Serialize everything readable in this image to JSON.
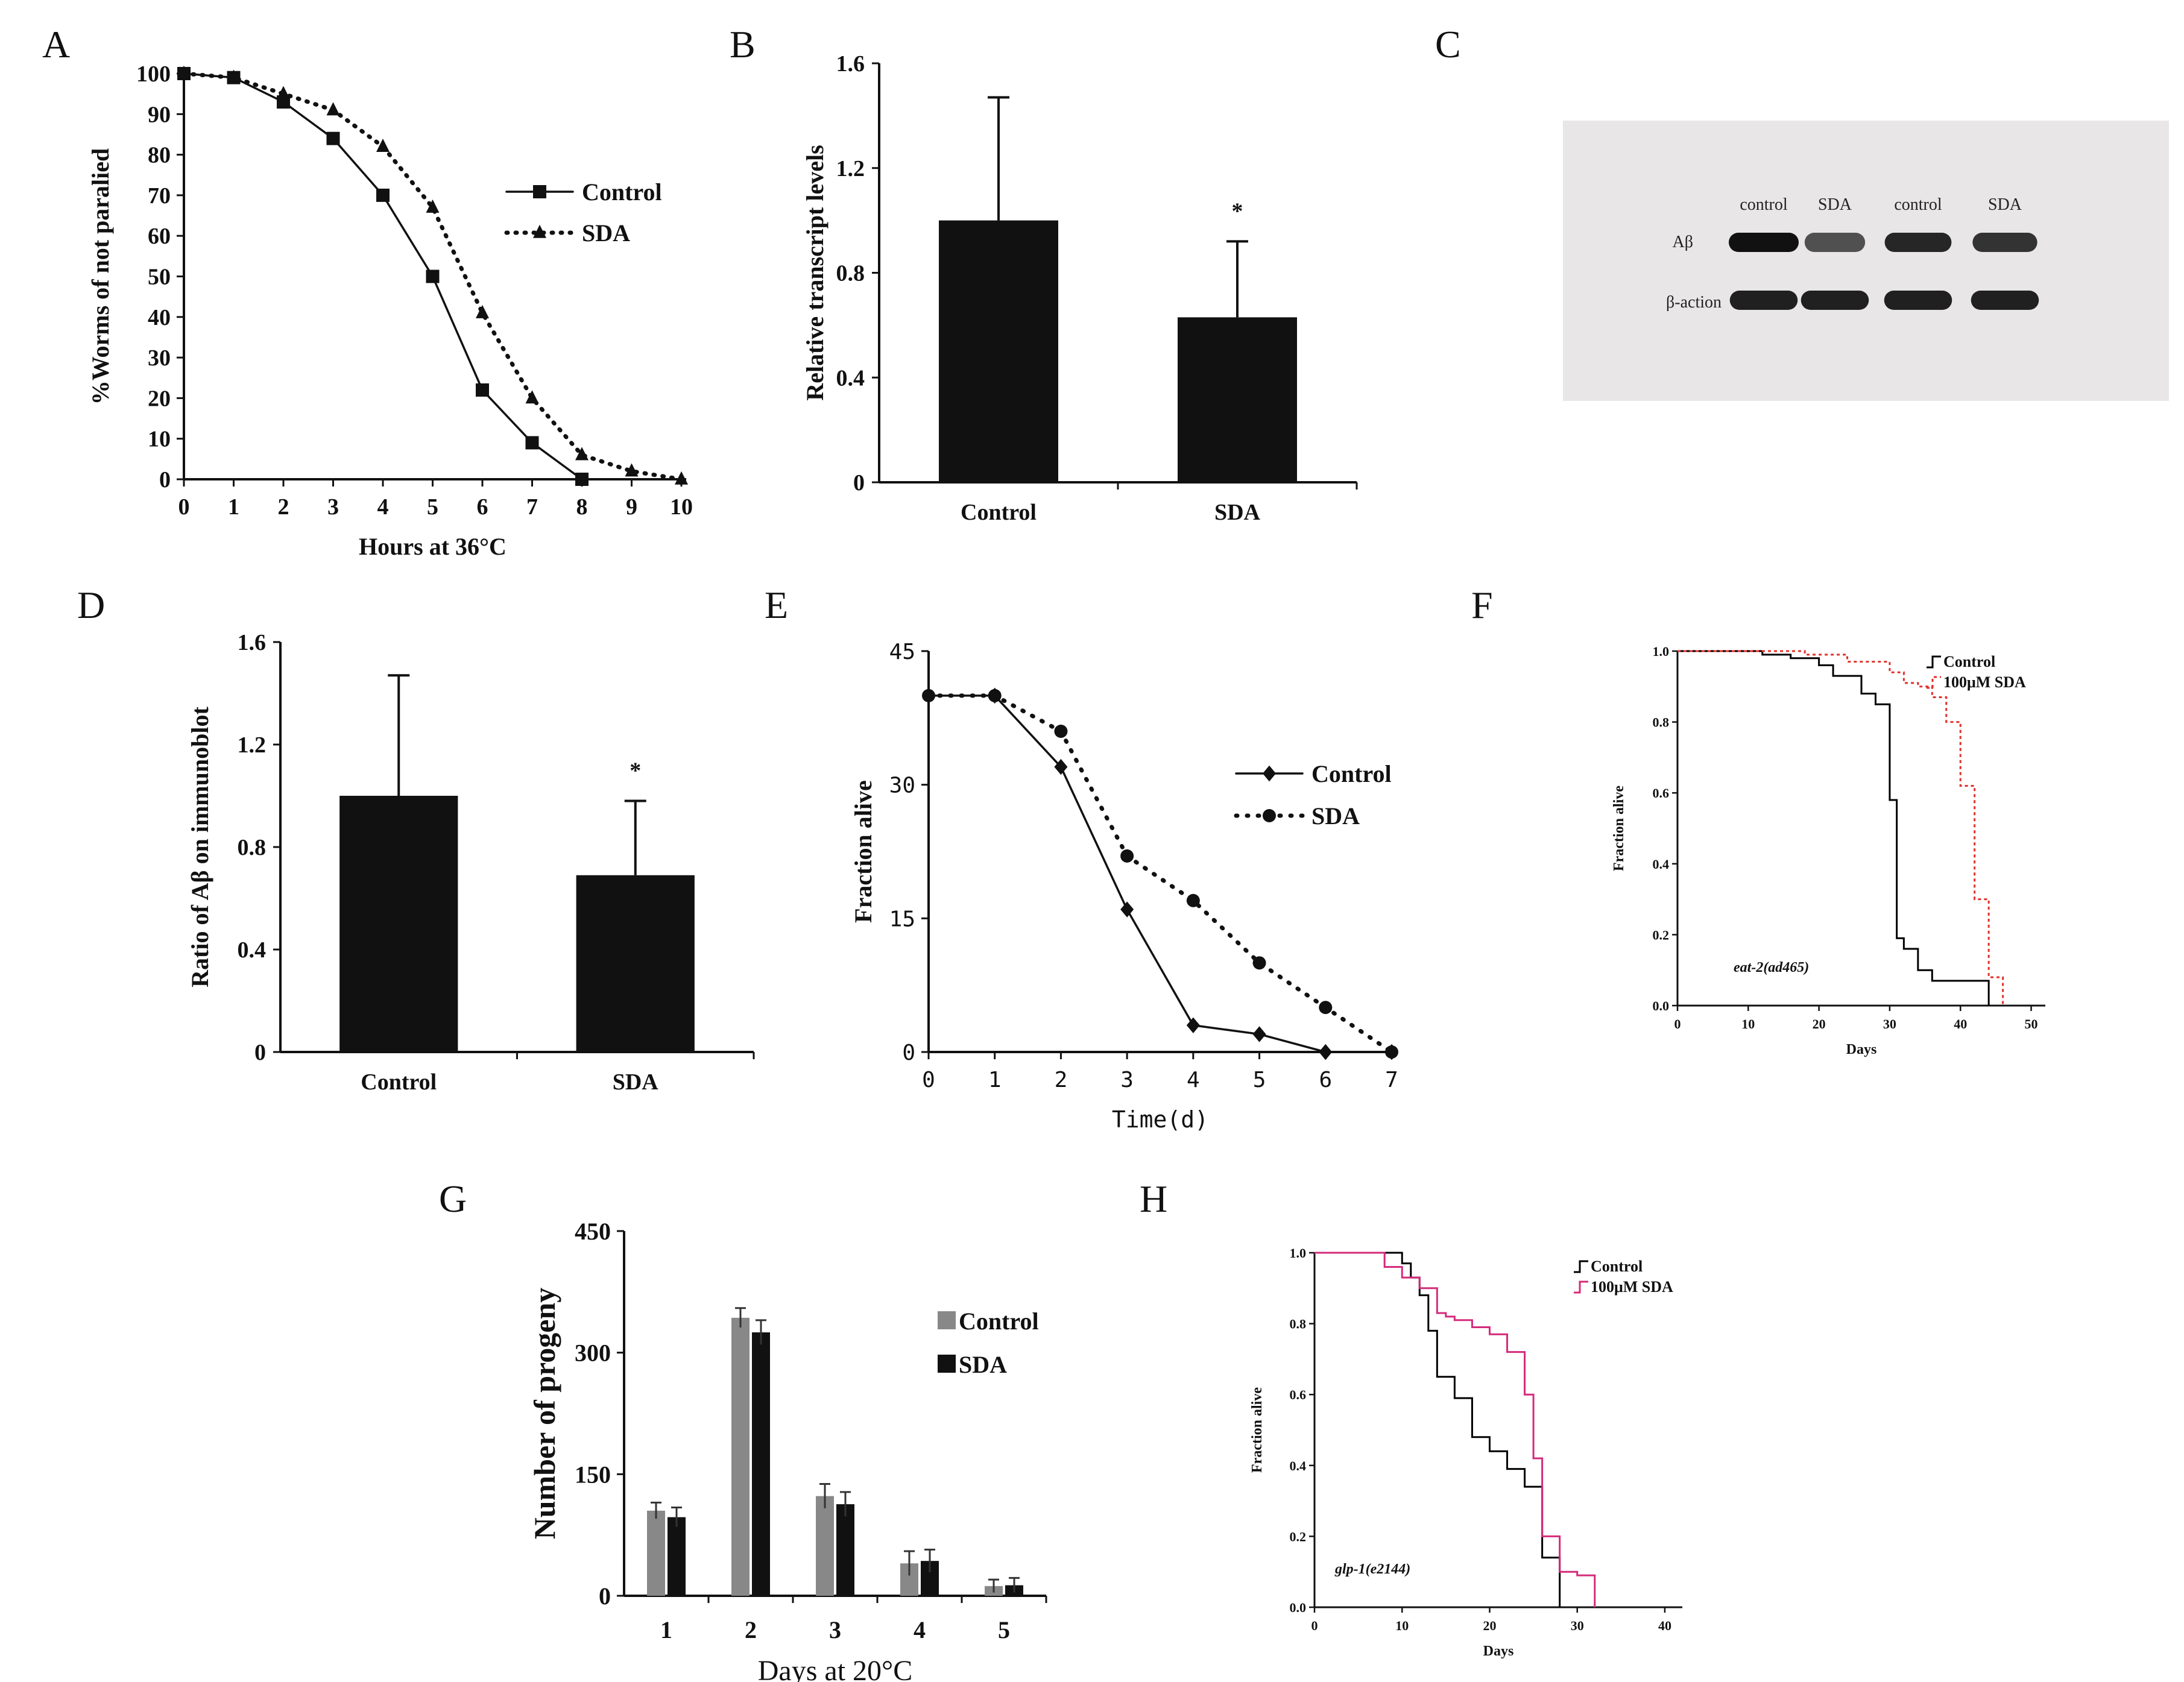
{
  "figure": {
    "panel_letters": [
      "A",
      "B",
      "C",
      "D",
      "E",
      "F",
      "G",
      "H"
    ]
  },
  "chart_data": [
    {
      "id": "A",
      "type": "line",
      "xlabel": "Hours at 36°C",
      "ylabel": "%Worms of not paralied",
      "xlim": [
        0,
        10
      ],
      "ylim": [
        0,
        100
      ],
      "xticks": [
        0,
        1,
        2,
        3,
        4,
        5,
        6,
        7,
        8,
        9,
        10
      ],
      "yticks": [
        0,
        10,
        20,
        30,
        40,
        50,
        60,
        70,
        80,
        90,
        100
      ],
      "legend_position": "right",
      "series": [
        {
          "name": "Control",
          "style": "solid",
          "marker": "square",
          "x": [
            0,
            1,
            2,
            3,
            4,
            5,
            6,
            7,
            8
          ],
          "y": [
            100,
            99,
            93,
            84,
            70,
            50,
            22,
            9,
            0
          ]
        },
        {
          "name": "SDA",
          "style": "dotted",
          "marker": "triangle",
          "x": [
            0,
            1,
            2,
            3,
            4,
            5,
            6,
            7,
            8,
            9,
            10
          ],
          "y": [
            100,
            99,
            95,
            91,
            82,
            67,
            41,
            20,
            6,
            2,
            0
          ]
        }
      ]
    },
    {
      "id": "B",
      "type": "bar",
      "categories": [
        "Control",
        "SDA"
      ],
      "values": [
        1.0,
        0.63
      ],
      "errors": [
        0.47,
        0.29
      ],
      "annotations": [
        "",
        "*"
      ],
      "ylabel": "Relative transcript levels",
      "ylim": [
        0,
        1.6
      ],
      "yticks": [
        "0",
        "0.4",
        "0.8",
        "1.2",
        "1.6"
      ]
    },
    {
      "id": "C",
      "type": "table",
      "kind": "western blot",
      "lane_labels": [
        "control",
        "SDA",
        "control",
        "SDA"
      ],
      "row_labels": [
        "Aβ",
        "β-action"
      ],
      "band_intensity": [
        [
          1.0,
          0.55,
          0.85,
          0.75
        ],
        [
          0.9,
          0.9,
          0.9,
          0.9
        ]
      ]
    },
    {
      "id": "D",
      "type": "bar",
      "categories": [
        "Control",
        "SDA"
      ],
      "values": [
        1.0,
        0.69
      ],
      "errors": [
        0.47,
        0.29
      ],
      "annotations": [
        "",
        "*"
      ],
      "ylabel": "Ratio of Aβ on immunoblot",
      "ylim": [
        0,
        1.6
      ],
      "yticks": [
        "0",
        "0.4",
        "0.8",
        "1.2",
        "1.6"
      ]
    },
    {
      "id": "E",
      "type": "line",
      "xlabel": "Time(d)",
      "ylabel": "Fraction alive",
      "xlim": [
        0,
        7
      ],
      "ylim": [
        0,
        45
      ],
      "xticks": [
        0,
        1,
        2,
        3,
        4,
        5,
        6,
        7
      ],
      "yticks": [
        0,
        15,
        30,
        45
      ],
      "legend_position": "right",
      "series": [
        {
          "name": "Control",
          "style": "solid",
          "marker": "diamond",
          "x": [
            0,
            1,
            2,
            3,
            4,
            5,
            6,
            7
          ],
          "y": [
            40,
            40,
            32,
            16,
            3,
            2,
            0,
            0
          ]
        },
        {
          "name": "SDA",
          "style": "dotted",
          "marker": "circle",
          "x": [
            0,
            1,
            2,
            3,
            4,
            5,
            6,
            7
          ],
          "y": [
            40,
            40,
            36,
            22,
            17,
            10,
            5,
            0
          ]
        }
      ]
    },
    {
      "id": "F",
      "type": "line",
      "step": true,
      "xlabel": "Days",
      "ylabel": "Fraction alive",
      "xlim": [
        0,
        52
      ],
      "ylim": [
        0,
        1.0
      ],
      "xticks": [
        0,
        10,
        20,
        30,
        40,
        50
      ],
      "yticks": [
        "0.0",
        "0.2",
        "0.4",
        "0.6",
        "0.8",
        "1.0"
      ],
      "annotation": "eat-2(ad465)",
      "legend_position": "top-right",
      "series": [
        {
          "name": "Control",
          "color": "#000000",
          "style": "solid",
          "x": [
            0,
            12,
            16,
            20,
            22,
            26,
            28,
            30,
            31,
            32,
            34,
            36,
            40,
            44
          ],
          "y": [
            1.0,
            0.99,
            0.98,
            0.96,
            0.93,
            0.88,
            0.85,
            0.58,
            0.19,
            0.16,
            0.1,
            0.07,
            0.07,
            0.0
          ]
        },
        {
          "name": "100μM SDA",
          "color": "#e0302a",
          "style": "dotted",
          "x": [
            0,
            18,
            24,
            30,
            32,
            34,
            36,
            38,
            40,
            42,
            44,
            46
          ],
          "y": [
            1.0,
            0.99,
            0.97,
            0.94,
            0.91,
            0.9,
            0.87,
            0.8,
            0.62,
            0.3,
            0.08,
            0.0
          ]
        }
      ]
    },
    {
      "id": "G",
      "type": "bar",
      "categories": [
        "1",
        "2",
        "3",
        "4",
        "5"
      ],
      "xlabel": "Days at 20°C",
      "ylabel": "Number of progeny",
      "ylim": [
        0,
        450
      ],
      "yticks": [
        "0",
        "150",
        "300",
        "450"
      ],
      "legend_position": "right",
      "series": [
        {
          "name": "Control",
          "color": "#888888",
          "values": [
            105,
            343,
            123,
            40,
            12
          ],
          "errors": [
            10,
            12,
            15,
            15,
            8
          ]
        },
        {
          "name": "SDA",
          "color": "#111111",
          "values": [
            97,
            325,
            113,
            43,
            13
          ],
          "errors": [
            12,
            15,
            15,
            14,
            9
          ]
        }
      ]
    },
    {
      "id": "H",
      "type": "line",
      "step": true,
      "xlabel": "Days",
      "ylabel": "Fraction alive",
      "xlim": [
        0,
        42
      ],
      "ylim": [
        0,
        1.0
      ],
      "xticks": [
        0,
        10,
        20,
        30,
        40
      ],
      "yticks": [
        "0.0",
        "0.2",
        "0.4",
        "0.6",
        "0.8",
        "1.0"
      ],
      "annotation": "glp-1(e2144)",
      "legend_position": "top-right",
      "series": [
        {
          "name": "Control",
          "color": "#000000",
          "style": "solid",
          "x": [
            0,
            10,
            11,
            12,
            13,
            14,
            16,
            18,
            20,
            22,
            24,
            26,
            28
          ],
          "y": [
            1.0,
            0.97,
            0.93,
            0.88,
            0.78,
            0.65,
            0.59,
            0.48,
            0.44,
            0.39,
            0.34,
            0.14,
            0.0
          ]
        },
        {
          "name": "100μM SDA",
          "color": "#d42a7a",
          "style": "solid",
          "x": [
            0,
            8,
            10,
            12,
            14,
            15,
            16,
            18,
            20,
            22,
            24,
            25,
            26,
            28,
            30,
            32
          ],
          "y": [
            1.0,
            0.96,
            0.93,
            0.9,
            0.83,
            0.82,
            0.81,
            0.79,
            0.77,
            0.72,
            0.6,
            0.42,
            0.2,
            0.1,
            0.09,
            0.0
          ]
        }
      ]
    }
  ]
}
